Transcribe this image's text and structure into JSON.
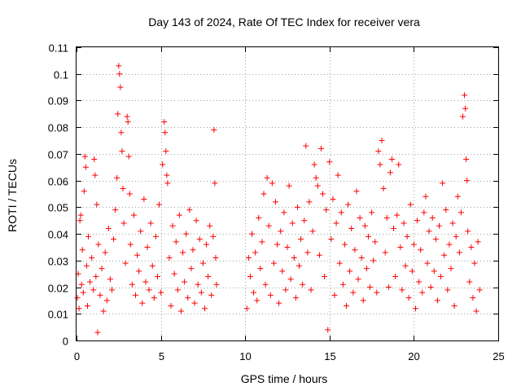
{
  "chart_data": {
    "type": "scatter",
    "title": "Day 143 of 2024, Rate Of TEC Index for receiver vera",
    "xlabel": "GPS time / hours",
    "ylabel": "ROTI / TECUs",
    "xlim": [
      0,
      25
    ],
    "ylim": [
      0,
      0.11
    ],
    "x_ticks": [
      0,
      5,
      10,
      15,
      20,
      25
    ],
    "x_tick_labels": [
      "0",
      "5",
      "10",
      "15",
      "20",
      "25"
    ],
    "y_ticks": [
      0,
      0.01,
      0.02,
      0.03,
      0.04,
      0.05,
      0.06,
      0.07,
      0.08,
      0.09,
      0.1,
      0.11
    ],
    "y_tick_labels": [
      "0",
      "0.01",
      "0.02",
      "0.03",
      "0.04",
      "0.05",
      "0.06",
      "0.07",
      "0.08",
      "0.09",
      "0.1",
      "0.11"
    ],
    "grid": true,
    "marker": "+",
    "color": "#ff0000",
    "series": [
      {
        "points": [
          [
            0.05,
            0.016
          ],
          [
            0.1,
            0.025
          ],
          [
            0.15,
            0.012
          ],
          [
            0.2,
            0.045
          ],
          [
            0.25,
            0.047
          ],
          [
            0.3,
            0.021
          ],
          [
            0.35,
            0.034
          ],
          [
            0.4,
            0.018
          ],
          [
            0.45,
            0.056
          ],
          [
            0.5,
            0.069
          ],
          [
            0.55,
            0.065
          ],
          [
            0.6,
            0.028
          ],
          [
            0.65,
            0.013
          ],
          [
            0.7,
            0.039
          ],
          [
            0.8,
            0.022
          ],
          [
            0.9,
            0.031
          ],
          [
            1.0,
            0.019
          ],
          [
            1.05,
            0.068
          ],
          [
            1.1,
            0.062
          ],
          [
            1.15,
            0.024
          ],
          [
            1.2,
            0.051
          ],
          [
            1.25,
            0.003
          ],
          [
            1.3,
            0.036
          ],
          [
            1.4,
            0.017
          ],
          [
            1.5,
            0.027
          ],
          [
            1.6,
            0.011
          ],
          [
            1.7,
            0.033
          ],
          [
            1.8,
            0.015
          ],
          [
            1.9,
            0.042
          ],
          [
            2.0,
            0.023
          ],
          [
            2.1,
            0.019
          ],
          [
            2.2,
            0.038
          ],
          [
            2.3,
            0.049
          ],
          [
            2.4,
            0.061
          ],
          [
            2.45,
            0.085
          ],
          [
            2.5,
            0.103
          ],
          [
            2.55,
            0.1
          ],
          [
            2.6,
            0.095
          ],
          [
            2.65,
            0.078
          ],
          [
            2.7,
            0.071
          ],
          [
            2.75,
            0.057
          ],
          [
            2.8,
            0.044
          ],
          [
            2.9,
            0.029
          ],
          [
            3.0,
            0.084
          ],
          [
            3.05,
            0.082
          ],
          [
            3.1,
            0.069
          ],
          [
            3.15,
            0.055
          ],
          [
            3.2,
            0.036
          ],
          [
            3.3,
            0.021
          ],
          [
            3.4,
            0.047
          ],
          [
            3.5,
            0.017
          ],
          [
            3.6,
            0.032
          ],
          [
            3.7,
            0.026
          ],
          [
            3.8,
            0.041
          ],
          [
            3.9,
            0.014
          ],
          [
            4.0,
            0.053
          ],
          [
            4.1,
            0.022
          ],
          [
            4.2,
            0.035
          ],
          [
            4.3,
            0.019
          ],
          [
            4.4,
            0.044
          ],
          [
            4.5,
            0.028
          ],
          [
            4.6,
            0.016
          ],
          [
            4.7,
            0.039
          ],
          [
            4.8,
            0.024
          ],
          [
            4.9,
            0.051
          ],
          [
            5.0,
            0.018
          ],
          [
            5.1,
            0.066
          ],
          [
            5.2,
            0.082
          ],
          [
            5.25,
            0.078
          ],
          [
            5.3,
            0.071
          ],
          [
            5.35,
            0.062
          ],
          [
            5.4,
            0.059
          ],
          [
            5.5,
            0.031
          ],
          [
            5.6,
            0.013
          ],
          [
            5.7,
            0.043
          ],
          [
            5.8,
            0.025
          ],
          [
            5.9,
            0.037
          ],
          [
            6.0,
            0.019
          ],
          [
            6.1,
            0.047
          ],
          [
            6.2,
            0.011
          ],
          [
            6.3,
            0.033
          ],
          [
            6.4,
            0.022
          ],
          [
            6.5,
            0.04
          ],
          [
            6.6,
            0.016
          ],
          [
            6.7,
            0.049
          ],
          [
            6.8,
            0.027
          ],
          [
            6.9,
            0.034
          ],
          [
            7.0,
            0.014
          ],
          [
            7.1,
            0.045
          ],
          [
            7.2,
            0.021
          ],
          [
            7.3,
            0.038
          ],
          [
            7.4,
            0.018
          ],
          [
            7.5,
            0.029
          ],
          [
            7.6,
            0.012
          ],
          [
            7.7,
            0.036
          ],
          [
            7.8,
            0.024
          ],
          [
            7.9,
            0.043
          ],
          [
            8.0,
            0.017
          ],
          [
            8.1,
            0.039
          ],
          [
            8.15,
            0.079
          ],
          [
            8.2,
            0.059
          ],
          [
            8.25,
            0.031
          ],
          [
            8.3,
            0.021
          ],
          [
            10.1,
            0.012
          ],
          [
            10.2,
            0.031
          ],
          [
            10.3,
            0.024
          ],
          [
            10.4,
            0.04
          ],
          [
            10.5,
            0.018
          ],
          [
            10.6,
            0.033
          ],
          [
            10.7,
            0.015
          ],
          [
            10.8,
            0.046
          ],
          [
            10.9,
            0.027
          ],
          [
            11.0,
            0.037
          ],
          [
            11.1,
            0.055
          ],
          [
            11.2,
            0.021
          ],
          [
            11.3,
            0.061
          ],
          [
            11.4,
            0.043
          ],
          [
            11.5,
            0.017
          ],
          [
            11.6,
            0.059
          ],
          [
            11.7,
            0.029
          ],
          [
            11.8,
            0.052
          ],
          [
            11.9,
            0.036
          ],
          [
            12.0,
            0.014
          ],
          [
            12.1,
            0.041
          ],
          [
            12.2,
            0.026
          ],
          [
            12.3,
            0.048
          ],
          [
            12.4,
            0.019
          ],
          [
            12.5,
            0.035
          ],
          [
            12.6,
            0.058
          ],
          [
            12.7,
            0.023
          ],
          [
            12.8,
            0.044
          ],
          [
            12.9,
            0.031
          ],
          [
            13.0,
            0.016
          ],
          [
            13.1,
            0.05
          ],
          [
            13.2,
            0.028
          ],
          [
            13.3,
            0.038
          ],
          [
            13.4,
            0.021
          ],
          [
            13.5,
            0.045
          ],
          [
            13.6,
            0.073
          ],
          [
            13.7,
            0.033
          ],
          [
            13.8,
            0.052
          ],
          [
            13.9,
            0.019
          ],
          [
            14.0,
            0.041
          ],
          [
            14.1,
            0.066
          ],
          [
            14.2,
            0.061
          ],
          [
            14.3,
            0.058
          ],
          [
            14.4,
            0.032
          ],
          [
            14.5,
            0.072
          ],
          [
            14.6,
            0.055
          ],
          [
            14.7,
            0.024
          ],
          [
            14.8,
            0.049
          ],
          [
            14.9,
            0.004
          ],
          [
            15.0,
            0.067
          ],
          [
            15.1,
            0.038
          ],
          [
            15.2,
            0.053
          ],
          [
            15.3,
            0.017
          ],
          [
            15.4,
            0.044
          ],
          [
            15.5,
            0.062
          ],
          [
            15.6,
            0.029
          ],
          [
            15.7,
            0.048
          ],
          [
            15.8,
            0.021
          ],
          [
            15.9,
            0.036
          ],
          [
            16.0,
            0.013
          ],
          [
            16.1,
            0.051
          ],
          [
            16.2,
            0.026
          ],
          [
            16.3,
            0.042
          ],
          [
            16.4,
            0.018
          ],
          [
            16.5,
            0.034
          ],
          [
            16.6,
            0.056
          ],
          [
            16.7,
            0.023
          ],
          [
            16.8,
            0.046
          ],
          [
            16.9,
            0.031
          ],
          [
            17.0,
            0.015
          ],
          [
            17.1,
            0.043
          ],
          [
            17.2,
            0.027
          ],
          [
            17.3,
            0.039
          ],
          [
            17.4,
            0.02
          ],
          [
            17.5,
            0.048
          ],
          [
            17.6,
            0.03
          ],
          [
            17.7,
            0.037
          ],
          [
            17.8,
            0.018
          ],
          [
            17.9,
            0.071
          ],
          [
            18.0,
            0.066
          ],
          [
            18.1,
            0.075
          ],
          [
            18.2,
            0.057
          ],
          [
            18.3,
            0.033
          ],
          [
            18.4,
            0.046
          ],
          [
            18.5,
            0.02
          ],
          [
            18.6,
            0.063
          ],
          [
            18.7,
            0.068
          ],
          [
            18.8,
            0.042
          ],
          [
            18.9,
            0.024
          ],
          [
            19.0,
            0.047
          ],
          [
            19.1,
            0.066
          ],
          [
            19.2,
            0.035
          ],
          [
            19.3,
            0.019
          ],
          [
            19.4,
            0.044
          ],
          [
            19.5,
            0.028
          ],
          [
            19.6,
            0.039
          ],
          [
            19.7,
            0.016
          ],
          [
            19.8,
            0.051
          ],
          [
            19.9,
            0.026
          ],
          [
            20.0,
            0.036
          ],
          [
            20.1,
            0.012
          ],
          [
            20.2,
            0.045
          ],
          [
            20.3,
            0.022
          ],
          [
            20.4,
            0.034
          ],
          [
            20.5,
            0.018
          ],
          [
            20.6,
            0.048
          ],
          [
            20.7,
            0.054
          ],
          [
            20.8,
            0.029
          ],
          [
            20.9,
            0.041
          ],
          [
            21.0,
            0.02
          ],
          [
            21.1,
            0.046
          ],
          [
            21.2,
            0.026
          ],
          [
            21.3,
            0.038
          ],
          [
            21.4,
            0.015
          ],
          [
            21.5,
            0.043
          ],
          [
            21.6,
            0.024
          ],
          [
            21.7,
            0.059
          ],
          [
            21.8,
            0.032
          ],
          [
            21.9,
            0.049
          ],
          [
            22.0,
            0.019
          ],
          [
            22.1,
            0.036
          ],
          [
            22.2,
            0.027
          ],
          [
            22.3,
            0.044
          ],
          [
            22.4,
            0.013
          ],
          [
            22.5,
            0.039
          ],
          [
            22.6,
            0.054
          ],
          [
            22.7,
            0.033
          ],
          [
            22.8,
            0.048
          ],
          [
            22.9,
            0.084
          ],
          [
            23.0,
            0.092
          ],
          [
            23.05,
            0.087
          ],
          [
            23.1,
            0.068
          ],
          [
            23.15,
            0.06
          ],
          [
            23.2,
            0.041
          ],
          [
            23.3,
            0.022
          ],
          [
            23.4,
            0.035
          ],
          [
            23.5,
            0.016
          ],
          [
            23.6,
            0.029
          ],
          [
            23.7,
            0.011
          ],
          [
            23.8,
            0.037
          ],
          [
            23.9,
            0.019
          ]
        ]
      }
    ]
  }
}
